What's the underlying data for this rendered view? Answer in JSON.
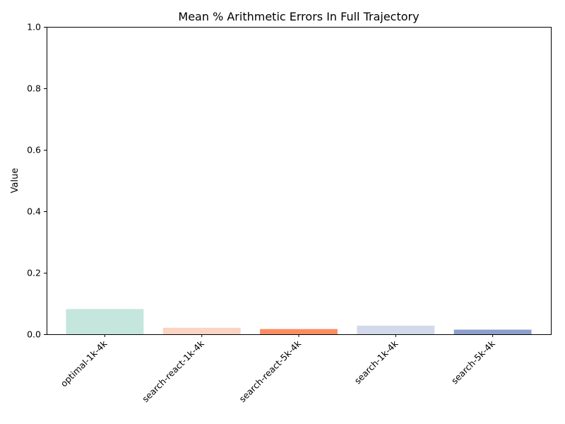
{
  "chart_data": {
    "type": "bar",
    "title": "Mean % Arithmetic Errors In Full Trajectory",
    "xlabel": "",
    "ylabel": "Value",
    "ylim": [
      0,
      1.0
    ],
    "yticks": [
      "0.0",
      "0.2",
      "0.4",
      "0.6",
      "0.8",
      "1.0"
    ],
    "categories": [
      "optimal-1k-4k",
      "search-react-1k-4k",
      "search-react-5k-4k",
      "search-1k-4k",
      "search-5k-4k"
    ],
    "values": [
      0.082,
      0.021,
      0.017,
      0.028,
      0.015
    ],
    "colors": [
      "#c4e6dc",
      "#fcd4c3",
      "#fc8d62",
      "#d2d9ea",
      "#8d9fcb"
    ],
    "grid": false,
    "legend": "none"
  }
}
